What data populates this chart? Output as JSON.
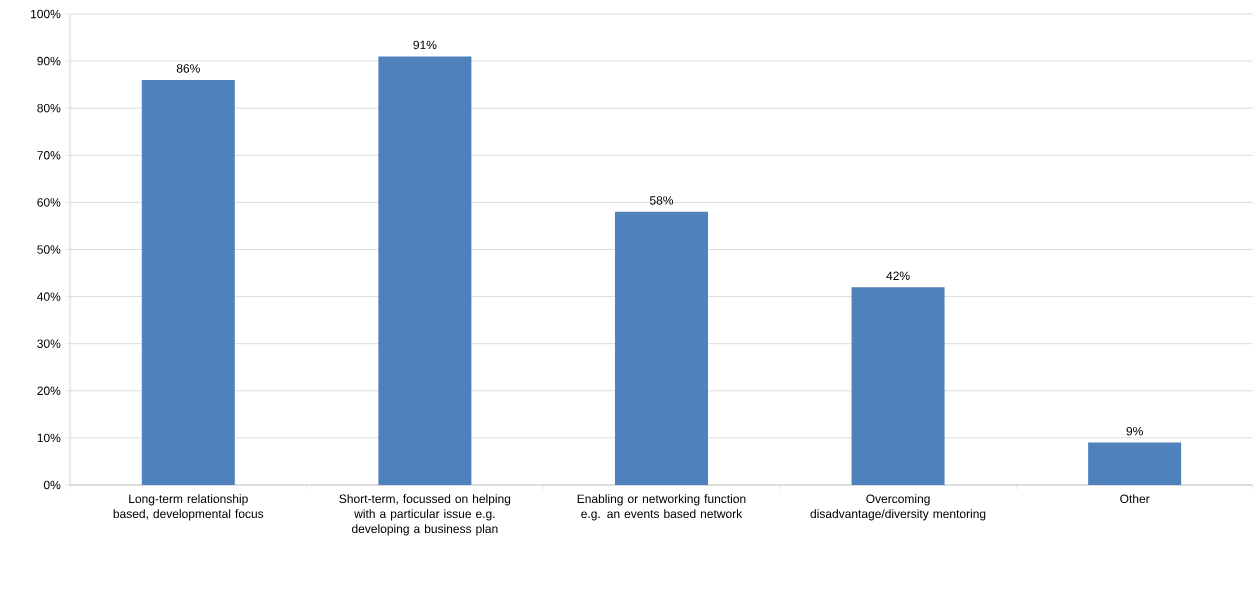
{
  "chart_data": {
    "type": "bar",
    "categories": [
      "Long-term relationship based, developmental focus",
      "Short-term, focussed on helping with a particular issue e.g. developing a business plan",
      "Enabling or networking function e.g. an events based network",
      "Overcoming disadvantage/diversity mentoring",
      "Other"
    ],
    "values": [
      86,
      91,
      58,
      42,
      9
    ],
    "value_labels": [
      "86%",
      "91%",
      "58%",
      "42%",
      "9%"
    ],
    "color": "#4f81bd",
    "ylim": [
      0,
      100
    ],
    "yticks": [
      {
        "value": 0,
        "label": "0%"
      },
      {
        "value": 10,
        "label": "10%"
      },
      {
        "value": 20,
        "label": "20%"
      },
      {
        "value": 30,
        "label": "30%"
      },
      {
        "value": 40,
        "label": "40%"
      },
      {
        "value": 50,
        "label": "50%"
      },
      {
        "value": 60,
        "label": "60%"
      },
      {
        "value": 70,
        "label": "70%"
      },
      {
        "value": 80,
        "label": "80%"
      },
      {
        "value": 90,
        "label": "90%"
      },
      {
        "value": 100,
        "label": "100%"
      }
    ],
    "grid": "y"
  }
}
